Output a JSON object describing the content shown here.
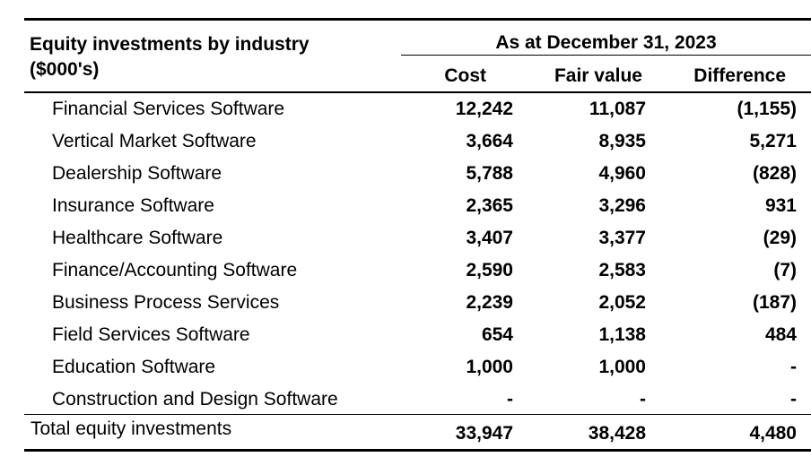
{
  "header": {
    "title_line1": "Equity investments by industry",
    "title_line2": "($000's)",
    "period": "As at December 31, 2023",
    "col_cost": "Cost",
    "col_fair_value": "Fair value",
    "col_difference": "Difference"
  },
  "rows": [
    {
      "industry": "Financial Services Software",
      "cost": "12,242",
      "fair_value": "11,087",
      "difference": "(1,155)"
    },
    {
      "industry": "Vertical Market Software",
      "cost": "3,664",
      "fair_value": "8,935",
      "difference": "5,271"
    },
    {
      "industry": "Dealership Software",
      "cost": "5,788",
      "fair_value": "4,960",
      "difference": "(828)"
    },
    {
      "industry": "Insurance Software",
      "cost": "2,365",
      "fair_value": "3,296",
      "difference": "931"
    },
    {
      "industry": "Healthcare Software",
      "cost": "3,407",
      "fair_value": "3,377",
      "difference": "(29)"
    },
    {
      "industry": "Finance/Accounting Software",
      "cost": "2,590",
      "fair_value": "2,583",
      "difference": "(7)"
    },
    {
      "industry": "Business Process Services",
      "cost": "2,239",
      "fair_value": "2,052",
      "difference": "(187)"
    },
    {
      "industry": "Field Services Software",
      "cost": "654",
      "fair_value": "1,138",
      "difference": "484"
    },
    {
      "industry": "Education Software",
      "cost": "1,000",
      "fair_value": "1,000",
      "difference": "-"
    },
    {
      "industry": "Construction and Design Software",
      "cost": "-",
      "fair_value": "-",
      "difference": "-"
    }
  ],
  "total": {
    "label": "Total equity investments",
    "cost": "33,947",
    "fair_value": "38,428",
    "difference": "4,480"
  }
}
